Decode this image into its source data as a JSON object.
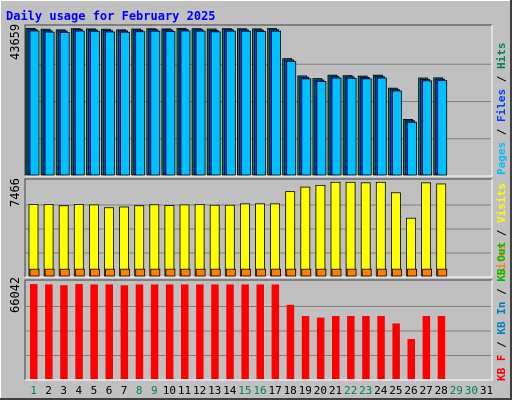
{
  "title": "Daily usage for February 2025",
  "colors": {
    "background": "#c0c0c0",
    "hits": "#00805c",
    "files": "#0040ff",
    "pages": "#00c0ff",
    "visits": "#ffff00",
    "sites": "#ff8000",
    "kbytes": "#ff0000",
    "kb_in": "#0080c0",
    "kb_out": "#00c000",
    "title": "#0000ff",
    "weekend_day": "#00805c",
    "weekday": "#000000"
  },
  "chart_data": [
    {
      "type": "bar",
      "panel": "top",
      "max_label": "43659",
      "ylim": [
        0,
        43659
      ],
      "legend": [
        "Hits",
        "Files",
        "Pages"
      ],
      "categories": [
        "1",
        "2",
        "3",
        "4",
        "5",
        "6",
        "7",
        "8",
        "9",
        "10",
        "11",
        "12",
        "13",
        "14",
        "15",
        "16",
        "17",
        "18",
        "19",
        "20",
        "21",
        "22",
        "23",
        "24",
        "25",
        "26",
        "27",
        "28",
        "29",
        "30",
        "31"
      ],
      "series": [
        {
          "name": "Hits",
          "values": [
            43560,
            43300,
            43110,
            43460,
            43400,
            43300,
            43130,
            43350,
            43450,
            43390,
            43550,
            43460,
            43380,
            43460,
            43450,
            43400,
            43500,
            34560,
            29430,
            28630,
            29650,
            29520,
            29380,
            29650,
            25790,
            16520,
            28810,
            28850,
            0,
            0,
            0
          ]
        },
        {
          "name": "Files",
          "values": [
            43210,
            42850,
            42760,
            43200,
            43100,
            42900,
            42800,
            43000,
            43150,
            43050,
            43200,
            43150,
            42950,
            43150,
            43100,
            43050,
            43150,
            34150,
            29000,
            28200,
            29230,
            29150,
            29000,
            29230,
            25380,
            16100,
            28400,
            28450,
            0,
            0,
            0
          ]
        },
        {
          "name": "Pages",
          "values": [
            42780,
            42420,
            42320,
            42750,
            42690,
            42470,
            42390,
            42560,
            42720,
            42620,
            42780,
            42720,
            42520,
            42720,
            42690,
            42620,
            42720,
            33700,
            28550,
            27770,
            28790,
            28700,
            28550,
            28790,
            24950,
            15660,
            27960,
            28010,
            0,
            0,
            0
          ]
        }
      ]
    },
    {
      "type": "bar",
      "panel": "middle",
      "max_label": "7466",
      "ylim": [
        0,
        7466
      ],
      "legend": [
        "Visits",
        "Sites"
      ],
      "categories": [
        "1",
        "2",
        "3",
        "4",
        "5",
        "6",
        "7",
        "8",
        "9",
        "10",
        "11",
        "12",
        "13",
        "14",
        "15",
        "16",
        "17",
        "18",
        "19",
        "20",
        "21",
        "22",
        "23",
        "24",
        "25",
        "26",
        "27",
        "28",
        "29",
        "30",
        "31"
      ],
      "series": [
        {
          "name": "Visits",
          "values": [
            5680,
            5680,
            5580,
            5680,
            5650,
            5420,
            5480,
            5580,
            5660,
            5590,
            5650,
            5680,
            5620,
            5620,
            5730,
            5730,
            5730,
            6700,
            7060,
            7200,
            7440,
            7440,
            7400,
            7440,
            6610,
            4590,
            7400,
            7310,
            0,
            0,
            0
          ]
        },
        {
          "name": "Sites",
          "values": [
            540,
            540,
            540,
            540,
            540,
            540,
            540,
            540,
            540,
            540,
            540,
            540,
            540,
            540,
            540,
            540,
            540,
            540,
            540,
            540,
            540,
            540,
            540,
            540,
            540,
            540,
            540,
            540,
            0,
            0,
            0
          ]
        }
      ]
    },
    {
      "type": "bar",
      "panel": "bottom",
      "max_label": "66042",
      "ylim": [
        0,
        66042
      ],
      "legend": [
        "KB F",
        "KB In",
        "KB Out"
      ],
      "categories": [
        "1",
        "2",
        "3",
        "4",
        "5",
        "6",
        "7",
        "8",
        "9",
        "10",
        "11",
        "12",
        "13",
        "14",
        "15",
        "16",
        "17",
        "18",
        "19",
        "20",
        "21",
        "22",
        "23",
        "24",
        "25",
        "26",
        "27",
        "28",
        "29",
        "30",
        "31"
      ],
      "series": [
        {
          "name": "KB F",
          "values": [
            65300,
            65050,
            64510,
            65300,
            65050,
            65050,
            64520,
            65050,
            65050,
            65050,
            65050,
            65050,
            65050,
            65050,
            65050,
            65050,
            65050,
            51000,
            43350,
            42250,
            43350,
            43350,
            43350,
            43350,
            38200,
            27500,
            43350,
            43350,
            0,
            0,
            0
          ]
        }
      ]
    }
  ],
  "x_labels": [
    "1",
    "2",
    "3",
    "4",
    "5",
    "6",
    "7",
    "8",
    "9",
    "10",
    "11",
    "12",
    "13",
    "14",
    "15",
    "16",
    "17",
    "18",
    "19",
    "20",
    "21",
    "22",
    "23",
    "24",
    "25",
    "26",
    "27",
    "28",
    "29",
    "30",
    "31"
  ],
  "weekend_days": [
    1,
    8,
    9,
    15,
    16,
    22,
    23,
    29,
    30
  ]
}
